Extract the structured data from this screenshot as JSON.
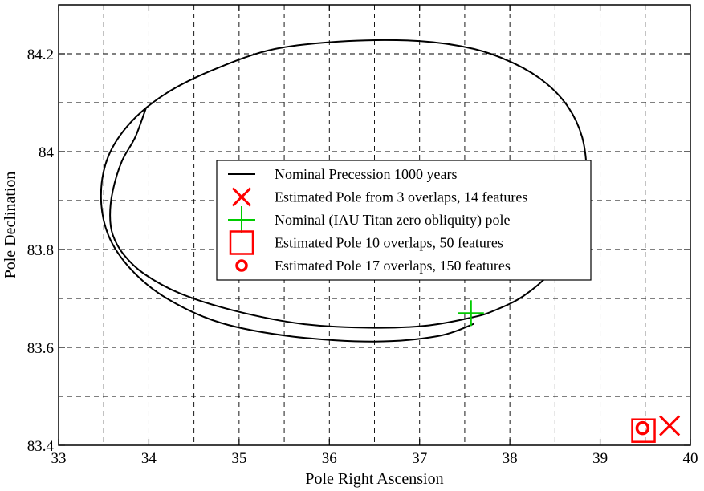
{
  "chart_data": {
    "type": "line",
    "title": "",
    "xlabel": "Pole Right Ascension",
    "ylabel": "Pole Declination",
    "xlim": [
      33,
      40
    ],
    "ylim": [
      83.4,
      84.3
    ],
    "x_ticks": [
      33,
      34,
      35,
      36,
      37,
      38,
      39,
      40
    ],
    "x_tick_labels": [
      "33",
      "34",
      "35",
      "36",
      "37",
      "38",
      "39",
      "40"
    ],
    "y_ticks": [
      83.4,
      83.6,
      83.8,
      84.0,
      84.2
    ],
    "y_tick_labels": [
      "83.4",
      "83.6",
      "83.8",
      "84",
      "84.2"
    ],
    "grid": true,
    "grid_x": [
      33.5,
      34,
      34.5,
      35,
      35.5,
      36,
      36.5,
      37,
      37.5,
      38,
      38.5,
      39,
      39.5
    ],
    "grid_y": [
      83.5,
      83.6,
      83.7,
      83.8,
      83.9,
      84.0,
      84.1,
      84.2
    ],
    "legend_placement": "center-right",
    "series": [
      {
        "name": "Nominal Precession 1000 years",
        "kind": "line",
        "color": "#000000",
        "x": [
          33.97,
          33.85,
          33.7,
          33.6,
          33.57,
          33.6,
          33.72,
          33.95,
          34.35,
          34.95,
          35.7,
          36.5,
          37.1,
          37.6,
          37.85,
          38.15,
          38.45,
          38.68,
          38.82,
          38.85,
          38.8,
          38.65,
          38.4,
          38.05,
          37.6,
          37.0,
          36.2,
          35.4,
          34.75,
          34.2,
          33.8,
          33.55,
          33.47,
          33.55,
          33.8,
          34.2,
          34.8,
          35.6,
          36.5,
          37.2,
          37.6
        ],
        "y": [
          84.09,
          84.03,
          83.98,
          83.92,
          83.87,
          83.83,
          83.79,
          83.75,
          83.71,
          83.675,
          83.648,
          83.64,
          83.645,
          83.662,
          83.677,
          83.705,
          83.752,
          83.81,
          83.88,
          83.96,
          84.03,
          84.09,
          84.14,
          84.18,
          84.21,
          84.226,
          84.226,
          84.21,
          84.17,
          84.12,
          84.06,
          83.99,
          83.91,
          83.83,
          83.76,
          83.7,
          83.65,
          83.622,
          83.612,
          83.623,
          83.648
        ]
      },
      {
        "name": "Estimated Pole from 3 overlaps, 14 features",
        "kind": "marker",
        "marker": "x",
        "color": "#ff0000",
        "x": [
          39.77
        ],
        "y": [
          83.44
        ]
      },
      {
        "name": "Nominal (IAU Titan zero obliquity) pole",
        "kind": "marker",
        "marker": "plus",
        "color": "#00cc00",
        "x": [
          37.57
        ],
        "y": [
          83.67
        ]
      },
      {
        "name": "Estimated Pole 10 overlaps, 50 features",
        "kind": "marker",
        "marker": "square",
        "color": "#ff0000",
        "x": [
          39.48
        ],
        "y": [
          83.43
        ]
      },
      {
        "name": "Estimated Pole 17 overlaps, 150 features",
        "kind": "marker",
        "marker": "circle",
        "color": "#ff0000",
        "x": [
          39.47
        ],
        "y": [
          83.435
        ]
      }
    ]
  }
}
